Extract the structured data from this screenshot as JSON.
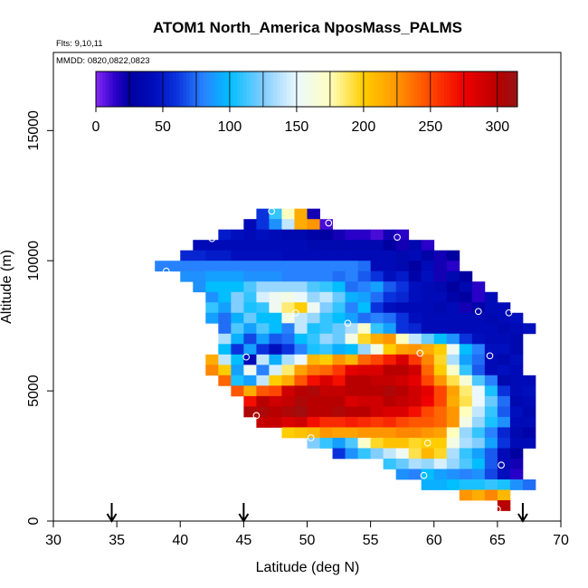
{
  "chart_data": {
    "type": "heatmap",
    "title": "ATOM1 North_America NposMass_PALMS",
    "subtitle_flights": "Flts: 9,10,11",
    "subtitle_dates": "MMDD: 0820,0822,0823",
    "xlabel": "Latitude (deg N)",
    "ylabel": "Altitude (m)",
    "xlim": [
      30,
      70
    ],
    "ylim": [
      0,
      18000
    ],
    "x_ticks": [
      "30",
      "35",
      "40",
      "45",
      "50",
      "55",
      "60",
      "65",
      "70"
    ],
    "y_ticks": [
      "0",
      "5000",
      "10000",
      "15000"
    ],
    "colorbar": {
      "range": [
        0,
        315
      ],
      "ticks": [
        "0",
        "50",
        "100",
        "150",
        "200",
        "250",
        "300"
      ]
    },
    "cell_size": {
      "lat_deg": 1,
      "alt_m": 400
    },
    "rows": [
      {
        "alt": 11800,
        "start": 46,
        "values": [
          60,
          110,
          175,
          215,
          20
        ]
      },
      {
        "alt": 11400,
        "start": 45,
        "values": [
          40,
          60,
          85,
          140,
          215,
          225,
          10
        ]
      },
      {
        "alt": 11000,
        "start": 43,
        "values": [
          50,
          45,
          40,
          45,
          40,
          35,
          35,
          30,
          25,
          20,
          15,
          15,
          10,
          20,
          15
        ]
      },
      {
        "alt": 10600,
        "start": 41,
        "values": [
          40,
          40,
          40,
          40,
          40,
          40,
          40,
          40,
          40,
          35,
          35,
          35,
          35,
          35,
          35,
          25,
          20,
          35,
          15
        ]
      },
      {
        "alt": 10200,
        "start": 40,
        "values": [
          55,
          55,
          50,
          50,
          45,
          45,
          45,
          45,
          40,
          40,
          40,
          40,
          40,
          40,
          40,
          40,
          40,
          35,
          40,
          30,
          20,
          25
        ]
      },
      {
        "alt": 9800,
        "start": 38,
        "values": [
          80,
          80,
          80,
          80,
          80,
          80,
          80,
          80,
          80,
          80,
          80,
          80,
          80,
          80,
          80,
          80,
          75,
          40,
          40,
          35,
          25,
          40,
          20,
          15
        ]
      },
      {
        "alt": 9400,
        "start": 40,
        "values": [
          85,
          85,
          90,
          90,
          90,
          85,
          85,
          85,
          80,
          80,
          80,
          80,
          75,
          80,
          70,
          60,
          45,
          50,
          30,
          45,
          20,
          35,
          25
        ]
      },
      {
        "alt": 9000,
        "start": 41,
        "values": [
          85,
          100,
          100,
          100,
          115,
          130,
          130,
          130,
          130,
          115,
          110,
          100,
          75,
          80,
          90,
          70,
          60,
          45,
          40,
          35,
          25,
          35,
          15
        ]
      },
      {
        "alt": 8600,
        "start": 42,
        "values": [
          85,
          100,
          125,
          110,
          145,
          155,
          160,
          150,
          130,
          140,
          120,
          95,
          90,
          75,
          60,
          55,
          45,
          40,
          40,
          30,
          25,
          15,
          40
        ]
      },
      {
        "alt": 8200,
        "start": 42,
        "values": [
          110,
          90,
          125,
          105,
          110,
          155,
          185,
          200,
          155,
          125,
          110,
          80,
          100,
          60,
          45,
          40,
          40,
          40,
          35,
          40,
          20,
          30,
          40,
          40
        ]
      },
      {
        "alt": 7800,
        "start": 42,
        "values": [
          90,
          75,
          95,
          120,
          100,
          100,
          160,
          140,
          130,
          110,
          100,
          90,
          75,
          80,
          75,
          60,
          45,
          40,
          40,
          40,
          40,
          40,
          35,
          40,
          45
        ]
      },
      {
        "alt": 7400,
        "start": 43,
        "values": [
          75,
          115,
          90,
          115,
          100,
          80,
          140,
          105,
          110,
          120,
          135,
          170,
          110,
          90,
          60,
          55,
          40,
          40,
          40,
          40,
          40,
          40,
          35,
          40,
          45
        ]
      },
      {
        "alt": 7000,
        "start": 43,
        "values": [
          135,
          95,
          65,
          90,
          70,
          75,
          100,
          110,
          130,
          120,
          160,
          195,
          215,
          225,
          175,
          140,
          120,
          100,
          85,
          60,
          45,
          40,
          40,
          35
        ]
      },
      {
        "alt": 6600,
        "start": 43,
        "values": [
          100,
          60,
          90,
          60,
          45,
          60,
          80,
          105,
          110,
          95,
          100,
          130,
          160,
          200,
          220,
          225,
          215,
          200,
          155,
          100,
          80,
          45,
          45,
          35
        ]
      },
      {
        "alt": 6200,
        "start": 42,
        "values": [
          215,
          140,
          100,
          40,
          140,
          95,
          135,
          150,
          210,
          200,
          225,
          210,
          240,
          250,
          265,
          285,
          255,
          230,
          195,
          135,
          90,
          75,
          40,
          35,
          45
        ]
      },
      {
        "alt": 5800,
        "start": 42,
        "values": [
          230,
          200,
          90,
          155,
          80,
          145,
          185,
          220,
          235,
          240,
          255,
          280,
          285,
          285,
          300,
          300,
          290,
          240,
          200,
          170,
          110,
          70,
          40,
          45,
          40
        ]
      },
      {
        "alt": 5400,
        "start": 43,
        "values": [
          240,
          105,
          90,
          140,
          200,
          215,
          245,
          270,
          285,
          270,
          300,
          300,
          295,
          295,
          290,
          280,
          250,
          225,
          190,
          165,
          115,
          80,
          35,
          40,
          40
        ]
      },
      {
        "alt": 5000,
        "start": 44,
        "values": [
          245,
          215,
          245,
          250,
          290,
          300,
          305,
          295,
          295,
          300,
          300,
          300,
          305,
          300,
          290,
          280,
          250,
          220,
          185,
          150,
          105,
          60,
          40,
          45
        ]
      },
      {
        "alt": 4600,
        "start": 45,
        "values": [
          270,
          300,
          290,
          295,
          305,
          300,
          300,
          300,
          285,
          290,
          290,
          300,
          295,
          290,
          275,
          250,
          215,
          190,
          150,
          120,
          75,
          35,
          40
        ]
      },
      {
        "alt": 4200,
        "start": 45,
        "values": [
          305,
          305,
          300,
          305,
          310,
          300,
          300,
          305,
          300,
          300,
          290,
          285,
          285,
          270,
          250,
          240,
          225,
          175,
          140,
          110,
          70,
          45,
          35
        ]
      },
      {
        "alt": 3800,
        "start": 46,
        "values": [
          295,
          295,
          285,
          290,
          270,
          260,
          260,
          265,
          260,
          255,
          260,
          250,
          245,
          245,
          240,
          225,
          160,
          130,
          105,
          85,
          40,
          40
        ]
      },
      {
        "alt": 3400,
        "start": 48,
        "values": [
          200,
          205,
          210,
          225,
          220,
          220,
          225,
          225,
          225,
          230,
          230,
          225,
          220,
          175,
          130,
          110,
          80,
          55,
          35,
          30
        ]
      },
      {
        "alt": 3000,
        "start": 50,
        "values": [
          125,
          110,
          90,
          115,
          170,
          195,
          205,
          205,
          195,
          200,
          200,
          160,
          135,
          125,
          90,
          60,
          40,
          40
        ]
      },
      {
        "alt": 2600,
        "start": 52,
        "values": [
          60,
          85,
          110,
          125,
          140,
          155,
          190,
          210,
          195,
          135,
          110,
          90,
          70,
          40,
          25
        ]
      },
      {
        "alt": 2200,
        "start": 56,
        "values": [
          110,
          120,
          135,
          130,
          145,
          130,
          115,
          100,
          70,
          40,
          20
        ]
      },
      {
        "alt": 1800,
        "start": 57,
        "values": [
          85,
          80,
          100,
          90,
          85,
          80,
          85,
          65,
          45,
          15
        ]
      },
      {
        "alt": 1400,
        "start": 59,
        "values": [
          95,
          95,
          100,
          105,
          105,
          110,
          105,
          85,
          75
        ]
      },
      {
        "alt": 1000,
        "start": 62,
        "values": [
          225,
          215,
          230,
          210
        ]
      },
      {
        "alt": 600,
        "start": 65,
        "values": [
          300
        ]
      }
    ],
    "flight_track_points": [
      [
        47.2,
        11900
      ],
      [
        51.7,
        11450
      ],
      [
        42.5,
        10850
      ],
      [
        57.1,
        10900
      ],
      [
        38.9,
        9600
      ],
      [
        49.1,
        8000
      ],
      [
        53.2,
        7600
      ],
      [
        63.5,
        8050
      ],
      [
        65.9,
        8000
      ],
      [
        45.2,
        6300
      ],
      [
        58.9,
        6450
      ],
      [
        64.4,
        6350
      ],
      [
        46.0,
        4050
      ],
      [
        50.3,
        3200
      ],
      [
        59.5,
        3000
      ],
      [
        59.2,
        1750
      ],
      [
        65.3,
        2150
      ],
      [
        65.0,
        450
      ]
    ],
    "arrow_markers_lat": [
      34.6,
      45.0,
      67.0
    ]
  }
}
